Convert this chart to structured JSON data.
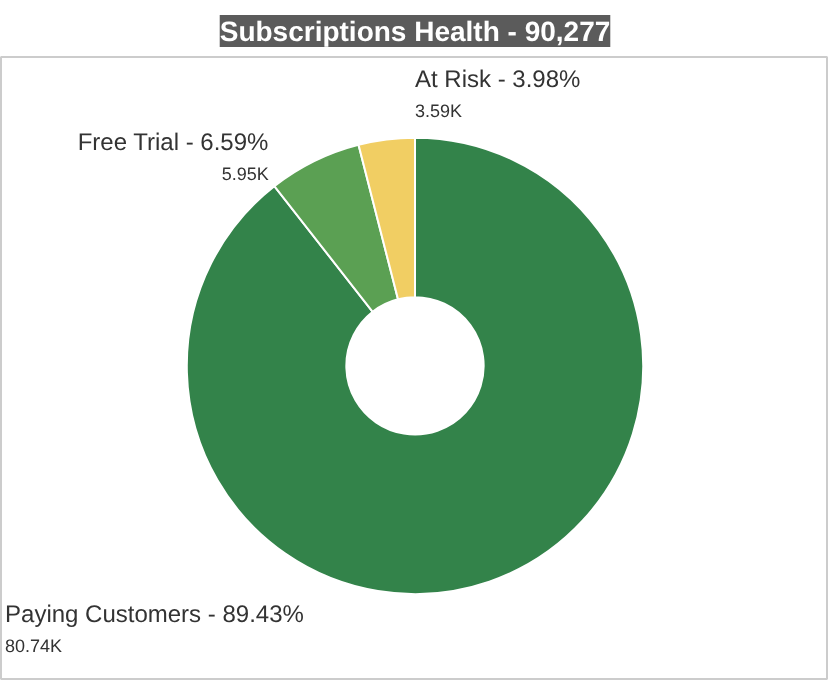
{
  "chart_data": {
    "type": "donut",
    "title": "Subscriptions Health - 90,277",
    "categories": [
      "Paying Customers",
      "Free Trial",
      "At Risk"
    ],
    "values": [
      89.43,
      6.59,
      3.98
    ],
    "colors": [
      "#33834a",
      "#5ba053",
      "#f1ce63"
    ],
    "value_labels": [
      "89.43%",
      "6.59%",
      "3.98%"
    ],
    "annotations": [
      "80.74K",
      "5.95K",
      "3.59K"
    ],
    "legend": false
  }
}
